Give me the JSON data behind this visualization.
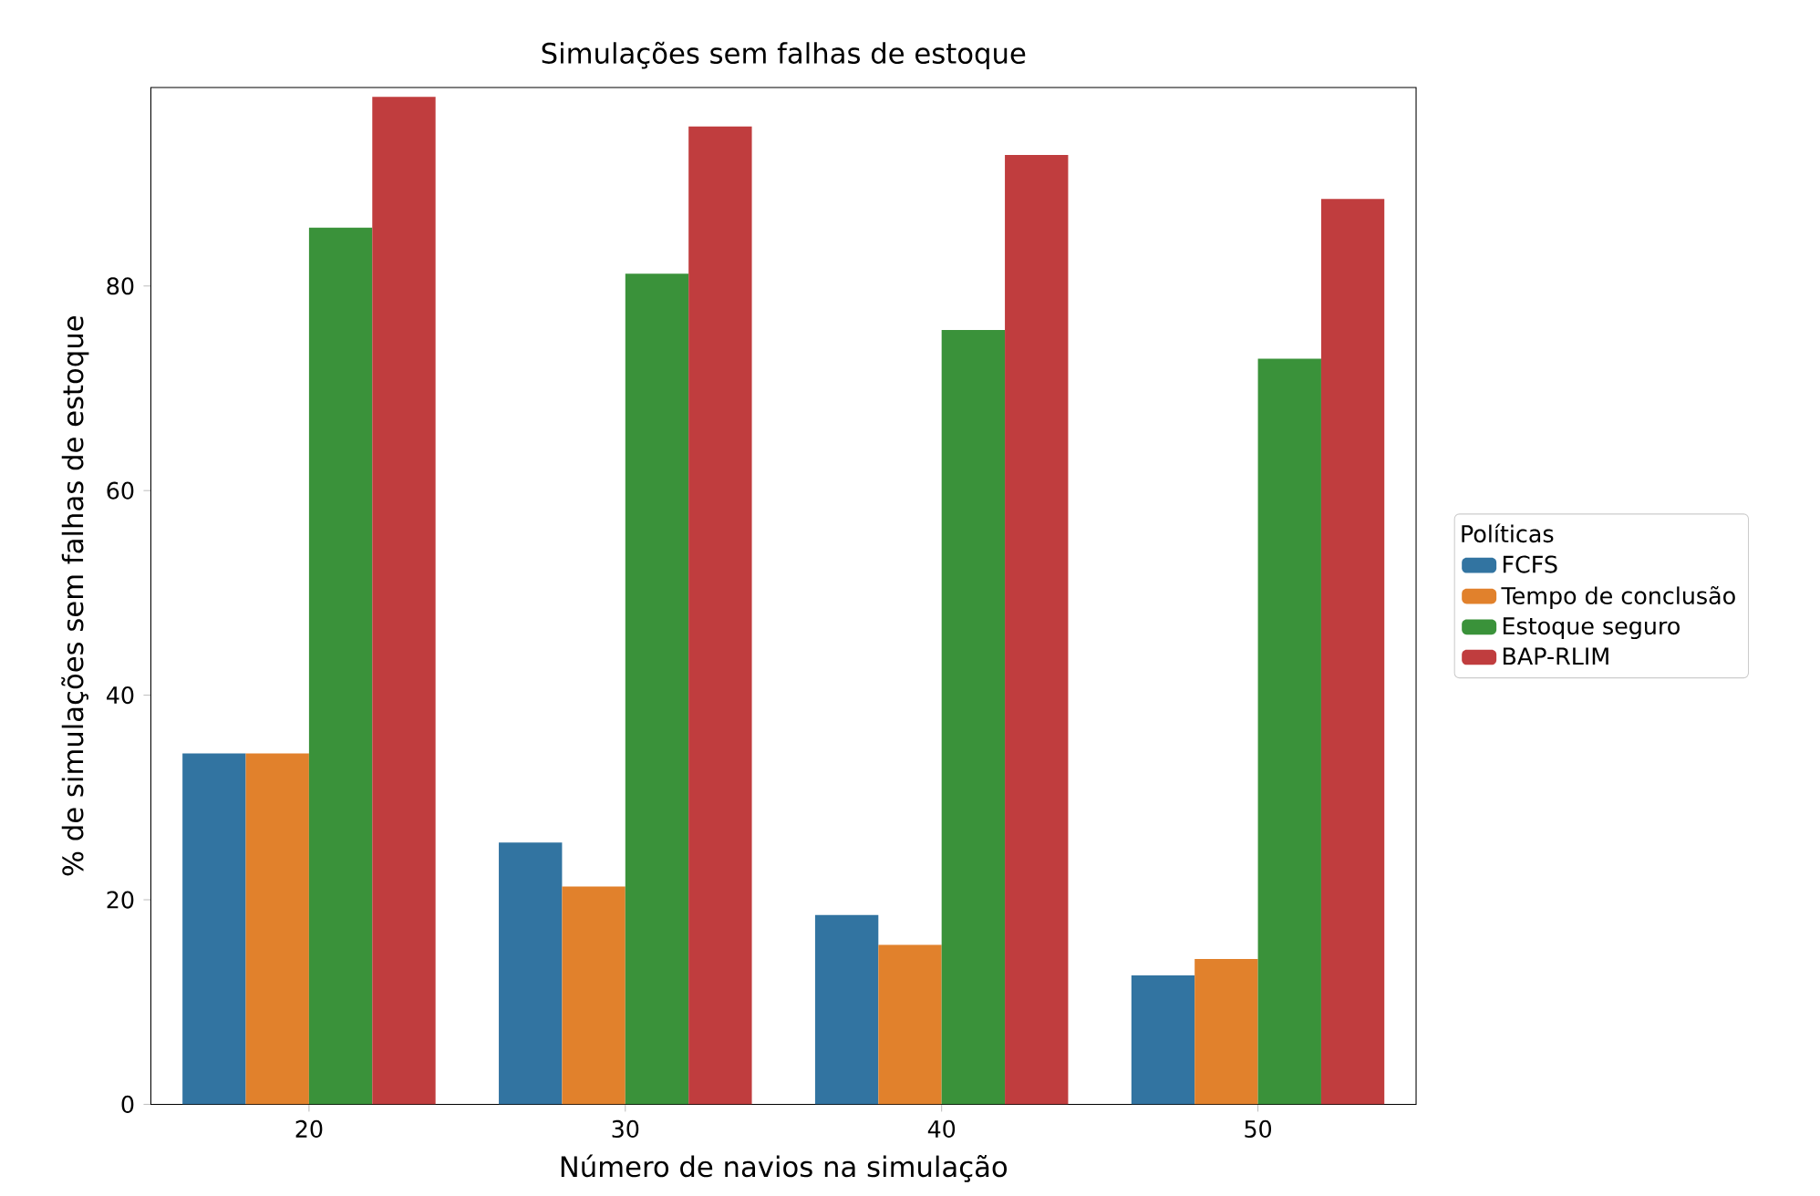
{
  "chart_data": {
    "type": "bar",
    "title": "Simulações sem falhas de estoque",
    "xlabel": "Número de navios na simulação",
    "ylabel": "% de simulações sem falhas de estoque",
    "legend_title": "Políticas",
    "categories": [
      "20",
      "30",
      "40",
      "50"
    ],
    "series": [
      {
        "name": "FCFS",
        "color": "#3274a1",
        "values": [
          34.3,
          25.6,
          18.5,
          12.6
        ]
      },
      {
        "name": "Tempo de conclusão",
        "color": "#e1812c",
        "values": [
          34.3,
          21.3,
          15.6,
          14.2
        ]
      },
      {
        "name": "Estoque seguro",
        "color": "#3a923a",
        "values": [
          85.7,
          81.2,
          75.7,
          72.9
        ]
      },
      {
        "name": "BAP-RLIM",
        "color": "#c03d3e",
        "values": [
          98.5,
          95.6,
          92.8,
          88.5
        ]
      }
    ],
    "ylim": [
      0,
      99.4
    ],
    "yticks": [
      0,
      20,
      40,
      60,
      80
    ],
    "legend": "right"
  }
}
